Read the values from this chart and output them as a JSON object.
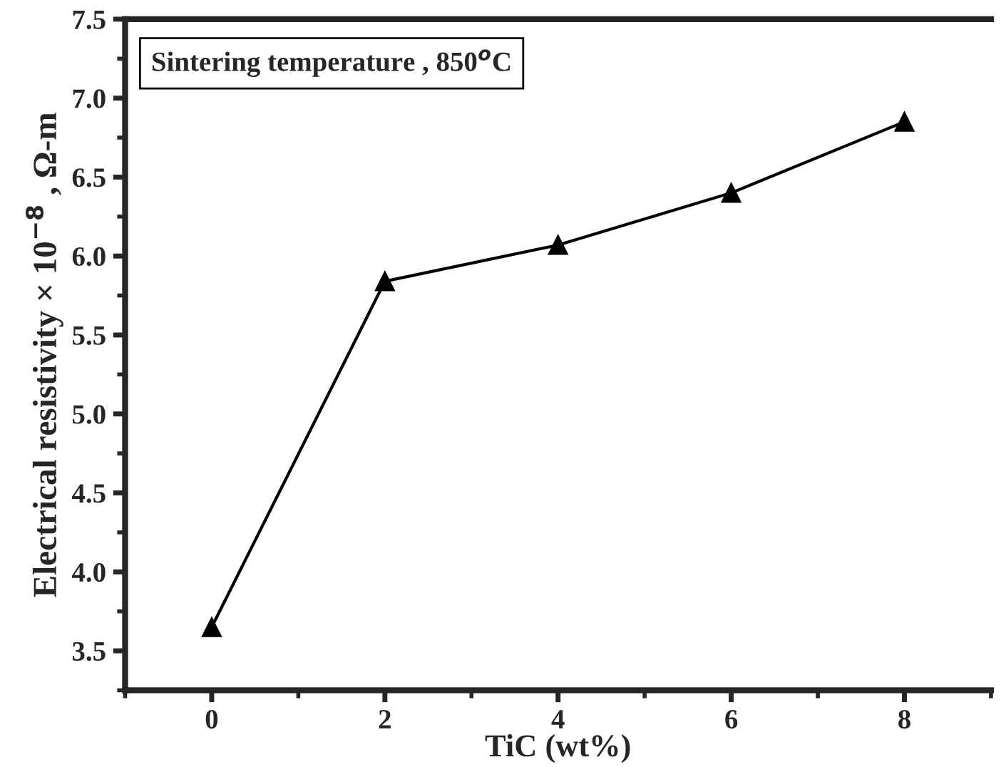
{
  "chart_data": {
    "type": "line",
    "x": [
      0,
      2,
      4,
      6,
      8
    ],
    "series": [
      {
        "color": "#000000",
        "values": [
          3.65,
          5.84,
          6.07,
          6.4,
          6.85
        ]
      }
    ],
    "xlabel": "TiC (wt%)",
    "ylabel": "Electrical resistivity × 10$^{−8}$ , Ω-m",
    "annotations": [
      "Sintering temperature , 850$^{o}$C"
    ],
    "xlim": [
      -1,
      9
    ],
    "xticks": [
      0,
      2,
      4,
      6,
      8
    ],
    "ylim": [
      3.25,
      7.5
    ],
    "yticks": [
      3.5,
      {
        "value": 4,
        "label": "4.0"
      },
      4.5,
      {
        "value": 5,
        "label": "5.0"
      },
      5.5,
      {
        "value": 6,
        "label": "6.0"
      },
      6.5,
      {
        "value": 7,
        "label": "7.0"
      },
      7.5
    ],
    "marker": "triangle",
    "line_style": "solid",
    "grid": false,
    "legend": false
  }
}
